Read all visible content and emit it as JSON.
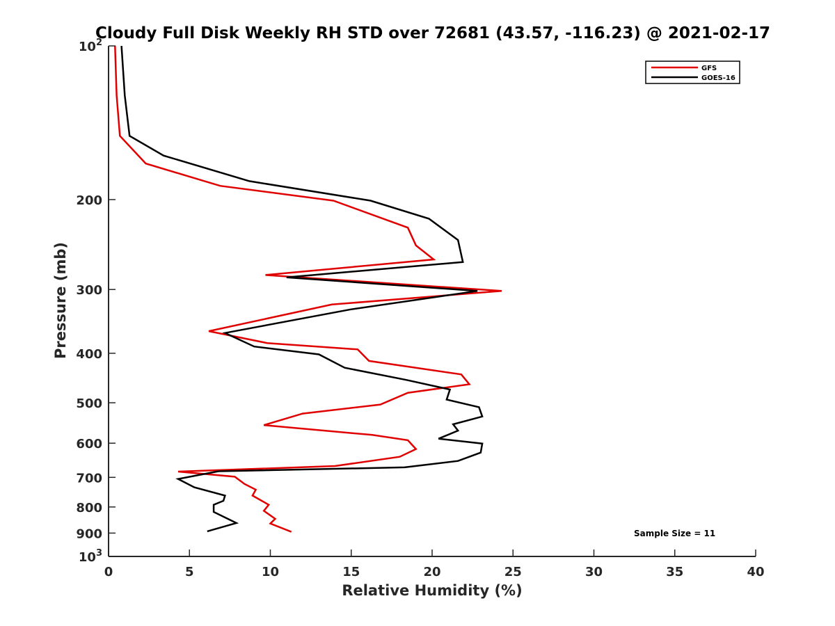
{
  "chart_data": {
    "type": "line",
    "title": "Cloudy Full Disk Weekly RH STD over 72681 (43.57, -116.23) @ 2021-02-17",
    "xlabel": "Relative Humidity (%)",
    "ylabel": "Pressure (mb)",
    "xlim": [
      0,
      40
    ],
    "ylim": [
      100,
      1000
    ],
    "y_scale": "log",
    "y_reversed": true,
    "grid": false,
    "legend_position": "top-right",
    "x_ticks": [
      0,
      5,
      10,
      15,
      20,
      25,
      30,
      35,
      40
    ],
    "y_ticks": [
      {
        "value": 100,
        "base": "10",
        "exp": "2"
      },
      {
        "value": 200,
        "label": "200"
      },
      {
        "value": 300,
        "label": "300"
      },
      {
        "value": 400,
        "label": "400"
      },
      {
        "value": 500,
        "label": "500"
      },
      {
        "value": 600,
        "label": "600"
      },
      {
        "value": 700,
        "label": "700"
      },
      {
        "value": 800,
        "label": "800"
      },
      {
        "value": 900,
        "label": "900"
      },
      {
        "value": 1000,
        "base": "10",
        "exp": "3"
      }
    ],
    "series": [
      {
        "name": "GFS",
        "color": "#e00000",
        "points": [
          [
            0.4,
            100
          ],
          [
            0.5,
            125
          ],
          [
            0.7,
            150
          ],
          [
            2.3,
            170
          ],
          [
            6.9,
            188
          ],
          [
            13.9,
            201
          ],
          [
            18.5,
            227
          ],
          [
            19.0,
            246
          ],
          [
            20.1,
            262
          ],
          [
            9.7,
            281
          ],
          [
            24.3,
            302
          ],
          [
            13.8,
            321
          ],
          [
            6.2,
            362
          ],
          [
            9.8,
            382
          ],
          [
            15.4,
            393
          ],
          [
            16.1,
            414
          ],
          [
            21.8,
            440
          ],
          [
            22.3,
            460
          ],
          [
            18.5,
            478
          ],
          [
            16.8,
            504
          ],
          [
            12.0,
            525
          ],
          [
            9.6,
            553
          ],
          [
            16.3,
            578
          ],
          [
            18.5,
            592
          ],
          [
            19.0,
            616
          ],
          [
            18.0,
            638
          ],
          [
            14.0,
            665
          ],
          [
            4.3,
            682
          ],
          [
            7.8,
            698
          ],
          [
            8.4,
            721
          ],
          [
            9.1,
            740
          ],
          [
            8.9,
            760
          ],
          [
            9.9,
            792
          ],
          [
            9.6,
            814
          ],
          [
            10.3,
            844
          ],
          [
            10.0,
            862
          ],
          [
            11.3,
            895
          ]
        ]
      },
      {
        "name": "GOES-16",
        "color": "#000000",
        "points": [
          [
            0.8,
            100
          ],
          [
            1.0,
            125
          ],
          [
            1.3,
            150
          ],
          [
            3.4,
            164
          ],
          [
            8.7,
            184
          ],
          [
            16.2,
            201
          ],
          [
            19.8,
            218
          ],
          [
            21.6,
            240
          ],
          [
            21.9,
            265
          ],
          [
            11.0,
            284
          ],
          [
            22.8,
            302
          ],
          [
            15.0,
            328
          ],
          [
            7.2,
            365
          ],
          [
            9.0,
            388
          ],
          [
            13.0,
            402
          ],
          [
            14.6,
            427
          ],
          [
            18.4,
            451
          ],
          [
            21.1,
            471
          ],
          [
            20.9,
            493
          ],
          [
            22.9,
            510
          ],
          [
            23.1,
            532
          ],
          [
            21.3,
            551
          ],
          [
            21.6,
            567
          ],
          [
            20.4,
            588
          ],
          [
            23.1,
            601
          ],
          [
            23.0,
            626
          ],
          [
            21.6,
            650
          ],
          [
            18.3,
            669
          ],
          [
            6.8,
            681
          ],
          [
            4.3,
            705
          ],
          [
            5.3,
            732
          ],
          [
            7.2,
            760
          ],
          [
            7.1,
            778
          ],
          [
            6.5,
            792
          ],
          [
            6.5,
            818
          ],
          [
            7.4,
            845
          ],
          [
            7.9,
            860
          ],
          [
            6.1,
            893
          ]
        ]
      }
    ],
    "annotation": "Sample Size = 11"
  }
}
